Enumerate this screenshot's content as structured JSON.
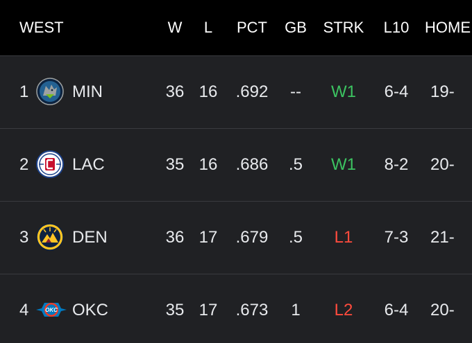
{
  "header": {
    "conference": "WEST",
    "w": "W",
    "l": "L",
    "pct": "PCT",
    "gb": "GB",
    "strk": "STRK",
    "l10": "L10",
    "home": "HOME"
  },
  "teams": [
    {
      "rank": "1",
      "abbr": "MIN",
      "logo": "timberwolves-logo-icon",
      "w": "36",
      "l": "16",
      "pct": ".692",
      "gb": "--",
      "strk": "W1",
      "strk_color": "#3cc361",
      "l10": "6-4",
      "home": "19-"
    },
    {
      "rank": "2",
      "abbr": "LAC",
      "logo": "clippers-logo-icon",
      "w": "35",
      "l": "16",
      "pct": ".686",
      "gb": ".5",
      "strk": "W1",
      "strk_color": "#3cc361",
      "l10": "8-2",
      "home": "20-"
    },
    {
      "rank": "3",
      "abbr": "DEN",
      "logo": "nuggets-logo-icon",
      "w": "36",
      "l": "17",
      "pct": ".679",
      "gb": ".5",
      "strk": "L1",
      "strk_color": "#ff4b3d",
      "l10": "7-3",
      "home": "21-"
    },
    {
      "rank": "4",
      "abbr": "OKC",
      "logo": "thunder-logo-icon",
      "w": "35",
      "l": "17",
      "pct": ".673",
      "gb": "1",
      "strk": "L2",
      "strk_color": "#ff4b3d",
      "l10": "6-4",
      "home": "20-"
    }
  ]
}
